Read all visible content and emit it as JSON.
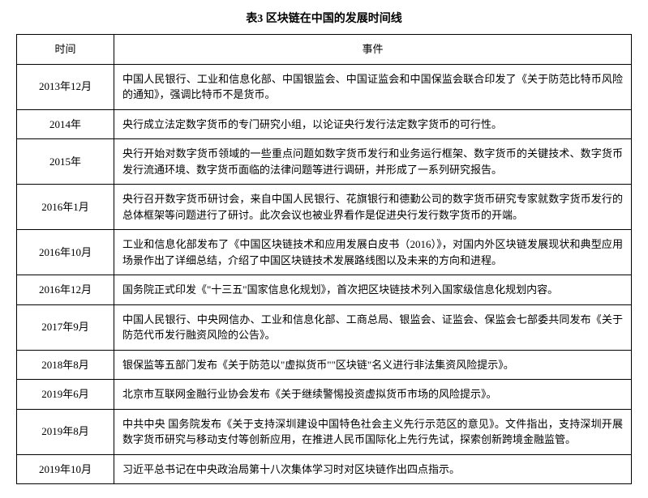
{
  "table": {
    "title": "表3 区块链在中国的发展时间线",
    "headers": {
      "time": "时间",
      "event": "事件"
    },
    "rows": [
      {
        "time": "2013年12月",
        "event": "中国人民银行、工业和信息化部、中国银监会、中国证监会和中国保监会联合印发了《关于防范比特币风险的通知》，强调比特币不是货币。"
      },
      {
        "time": "2014年",
        "event": "央行成立法定数字货币的专门研究小组，以论证央行发行法定数字货币的可行性。"
      },
      {
        "time": "2015年",
        "event": "央行开始对数字货币领域的一些重点问题如数字货币发行和业务运行框架、数字货币的关键技术、数字货币发行流通环境、数字货币面临的法律问题等进行调研，并形成了一系列研究报告。"
      },
      {
        "time": "2016年1月",
        "event": "央行召开数字货币研讨会，来自中国人民银行、花旗银行和德勤公司的数字货币研究专家就数字货币发行的总体框架等问题进行了研讨。此次会议也被业界看作是促进央行发行数字货币的开端。"
      },
      {
        "time": "2016年10月",
        "event": "工业和信息化部发布了《中国区块链技术和应用发展白皮书（2016）》，对国内外区块链发展现状和典型应用场景作出了详细总结，介绍了中国区块链技术发展路线图以及未来的方向和进程。"
      },
      {
        "time": "2016年12月",
        "event": "国务院正式印发《\"十三五\"国家信息化规划》，首次把区块链技术列入国家级信息化规划内容。"
      },
      {
        "time": "2017年9月",
        "event": "中国人民银行、中央网信办、工业和信息化部、工商总局、银监会、证监会、保监会七部委共同发布《关于防范代币发行融资风险的公告》。"
      },
      {
        "time": "2018年8月",
        "event": "银保监等五部门发布《关于防范以\"虚拟货币\"\"区块链\"名义进行非法集资风险提示》。"
      },
      {
        "time": "2019年6月",
        "event": "北京市互联网金融行业协会发布《关于继续警惕投资虚拟货币市场的风险提示》。"
      },
      {
        "time": "2019年8月",
        "event": "中共中央 国务院发布《关于支持深圳建设中国特色社会主义先行示范区的意见》。文件指出，支持深圳开展数字货币研究与移动支付等创新应用，在推进人民币国际化上先行先试，探索创新跨境金融监管。"
      },
      {
        "time": "2019年10月",
        "event": "习近平总书记在中央政治局第十八次集体学习时对区块链作出四点指示。"
      }
    ]
  },
  "styling": {
    "font_family": "SimSun",
    "title_fontsize": 14,
    "cell_fontsize": 13,
    "border_color": "#000000",
    "background_color": "#ffffff",
    "text_color": "#000000",
    "time_col_width": 120,
    "line_height": 1.5
  }
}
